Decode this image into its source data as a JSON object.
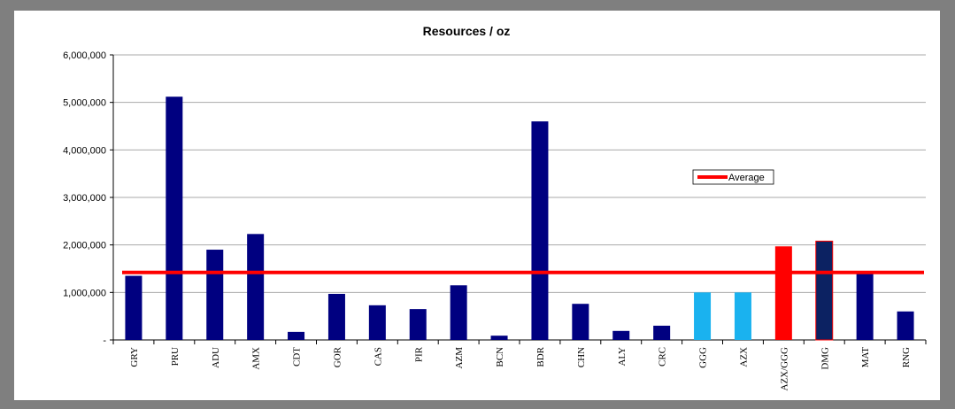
{
  "chart_data": {
    "type": "bar",
    "title": "Resources  / oz",
    "categories": [
      "GRY",
      "PRU",
      "ADU",
      "AMX",
      "CDT",
      "GOR",
      "CAS",
      "PIR",
      "AZM",
      "BCN",
      "BDR",
      "CHN",
      "ALY",
      "CRC",
      "GGG",
      "AZX",
      "AZX/GGG",
      "DMG",
      "MAT",
      "RNG"
    ],
    "values": [
      1350000,
      5120000,
      1900000,
      2230000,
      170000,
      970000,
      730000,
      650000,
      1150000,
      90000,
      4600000,
      760000,
      190000,
      300000,
      1000000,
      1000000,
      1970000,
      2080000,
      1400000,
      600000
    ],
    "colors": [
      "#000080",
      "#000080",
      "#000080",
      "#000080",
      "#000080",
      "#000080",
      "#000080",
      "#000080",
      "#000080",
      "#000080",
      "#000080",
      "#000080",
      "#000080",
      "#000080",
      "#1ab2ef",
      "#1ab2ef",
      "#ff0000",
      "#0c2262",
      "#000080",
      "#000080"
    ],
    "average": {
      "name": "Average",
      "value": 1420000,
      "color": "#ff0000"
    },
    "ylim": [
      0,
      6000000
    ],
    "yticks": [
      {
        "value": 0,
        "label": "-"
      },
      {
        "value": 1000000,
        "label": "1,000,000"
      },
      {
        "value": 2000000,
        "label": "2,000,000"
      },
      {
        "value": 3000000,
        "label": "3,000,000"
      },
      {
        "value": 4000000,
        "label": "4,000,000"
      },
      {
        "value": 5000000,
        "label": "5,000,000"
      },
      {
        "value": 6000000,
        "label": "6,000,000"
      }
    ],
    "grid": true
  }
}
